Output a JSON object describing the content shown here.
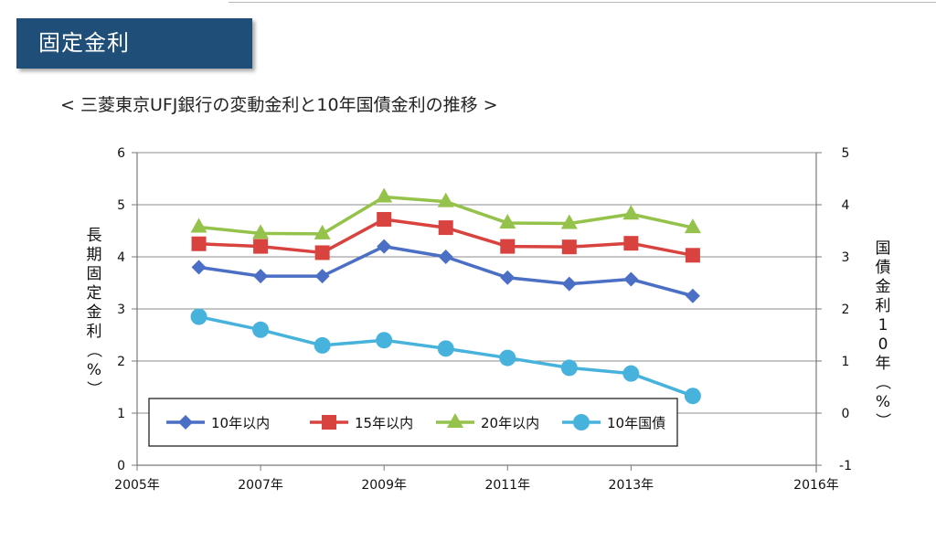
{
  "slide": {
    "title": "固定金利",
    "subtitle": "< 三菱東京UFJ銀行の変動金利と10年国債金利の推移 >"
  },
  "chart_data": {
    "type": "line",
    "x_ticks": [
      "2005年",
      "2007年",
      "2009年",
      "2011年",
      "2013年",
      "2016年"
    ],
    "x_tick_years": [
      2005,
      2007,
      2009,
      2011,
      2013,
      2016
    ],
    "xlim": [
      2005,
      2016
    ],
    "x": [
      2006,
      2007,
      2008,
      2009,
      2010,
      2011,
      2012,
      2013,
      2014
    ],
    "y_left": {
      "label": "長期固定金利（%）",
      "ylim": [
        0,
        6
      ],
      "ticks": [
        0,
        1,
        2,
        3,
        4,
        5,
        6
      ]
    },
    "y_right": {
      "label": "国債金利10年（%）",
      "ylim": [
        -1,
        5
      ],
      "ticks": [
        -1,
        0,
        1,
        2,
        3,
        4,
        5
      ]
    },
    "grid": true,
    "legend_position": "bottom-left",
    "series": [
      {
        "name": "10年以内",
        "axis": "left",
        "marker": "diamond",
        "color": "#4a6fc4",
        "values": [
          3.8,
          3.63,
          3.63,
          4.2,
          4.0,
          3.6,
          3.48,
          3.57,
          3.25
        ]
      },
      {
        "name": "15年以内",
        "axis": "left",
        "marker": "square",
        "color": "#d9433f",
        "values": [
          4.25,
          4.2,
          4.08,
          4.72,
          4.56,
          4.2,
          4.19,
          4.26,
          4.03
        ]
      },
      {
        "name": "20年以内",
        "axis": "left",
        "marker": "triangle",
        "color": "#94c24a",
        "values": [
          4.57,
          4.45,
          4.44,
          5.15,
          5.06,
          4.65,
          4.64,
          4.82,
          4.56
        ]
      },
      {
        "name": "10年国債",
        "axis": "right",
        "marker": "circle",
        "color": "#47b3dd",
        "values": [
          1.85,
          1.6,
          1.3,
          1.4,
          1.24,
          1.06,
          0.87,
          0.76,
          0.33
        ]
      }
    ]
  }
}
